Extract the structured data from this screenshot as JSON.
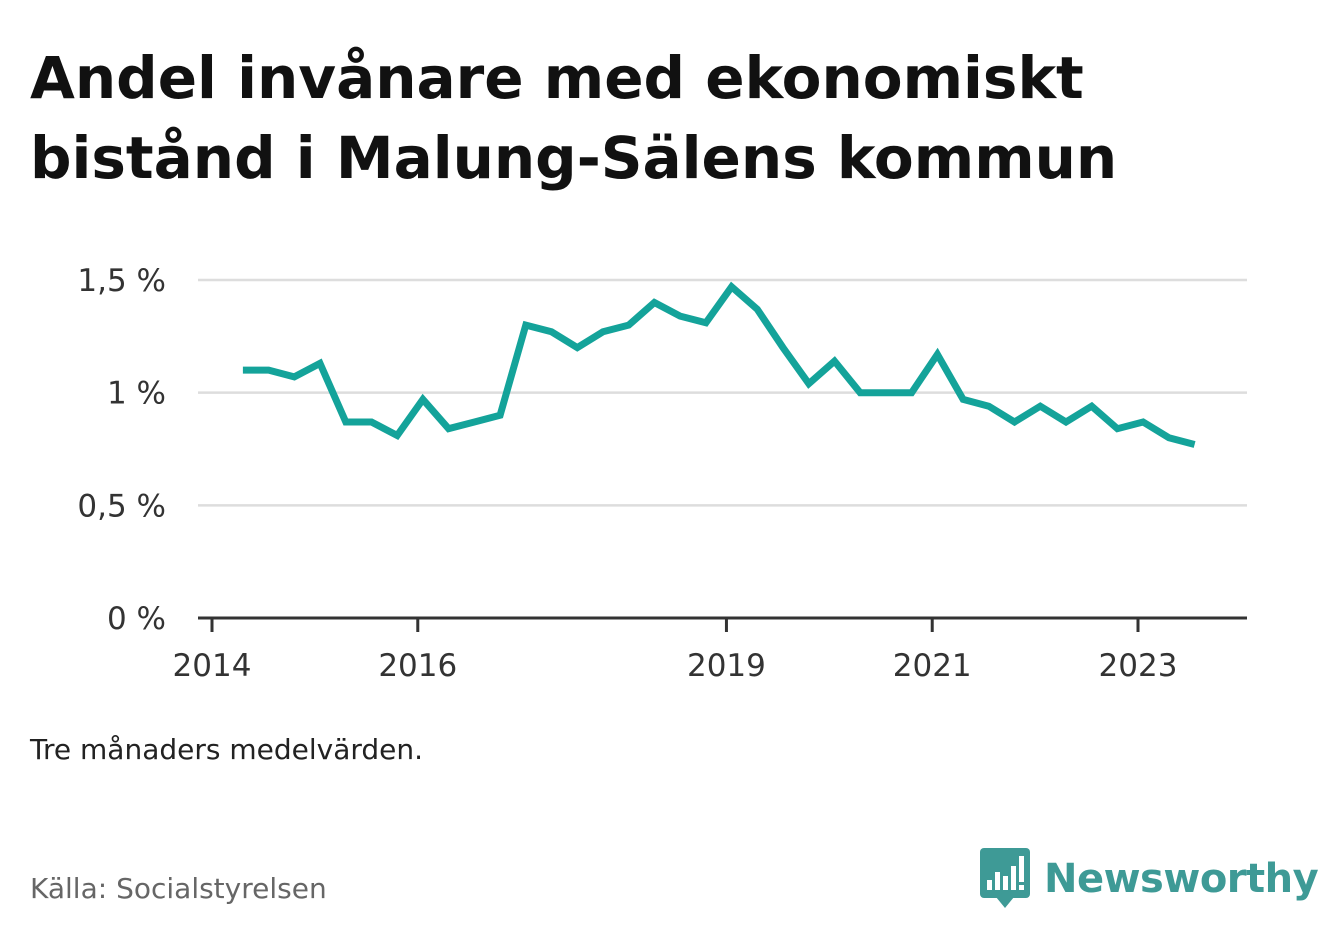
{
  "title": "Andel invånare med ekonomiskt bistånd i Malung-Sälens kommun",
  "note": "Tre månaders medelvärden.",
  "source": "Källa: Socialstyrelsen",
  "brand": {
    "name": "Newsworthy",
    "icon": "bar-chart-speech-bubble-icon",
    "color": "#3e9a96"
  },
  "chart_data": {
    "type": "line",
    "x_ticks": [
      "2014",
      "2016",
      "2019",
      "2021",
      "2023"
    ],
    "x_tick_positions": [
      2014.0,
      2016.0,
      2019.0,
      2021.0,
      2023.0
    ],
    "y_ticks": [
      {
        "value": 0,
        "label": "0 %"
      },
      {
        "value": 0.5,
        "label": "0,5 %"
      },
      {
        "value": 1,
        "label": "1 %"
      },
      {
        "value": 1.5,
        "label": "1,5 %"
      }
    ],
    "ylim": [
      0,
      1.5
    ],
    "grid": true,
    "line_color": "#14a39a",
    "series": [
      {
        "x": [
          2014.3,
          2014.55,
          2014.8,
          2015.05,
          2015.3,
          2015.55,
          2015.8,
          2016.05,
          2016.3,
          2016.55,
          2016.8,
          2017.05,
          2017.3,
          2017.55,
          2017.8,
          2018.05,
          2018.3,
          2018.55,
          2018.8,
          2019.05,
          2019.3,
          2019.55,
          2019.8,
          2020.05,
          2020.3,
          2020.55,
          2020.8,
          2021.05,
          2021.3,
          2021.55,
          2021.8,
          2022.05,
          2022.3,
          2022.55,
          2022.8,
          2023.05,
          2023.3,
          2023.55
        ],
        "values": [
          1.1,
          1.1,
          1.07,
          1.13,
          0.87,
          0.87,
          0.81,
          0.97,
          0.84,
          0.87,
          0.9,
          1.3,
          1.27,
          1.2,
          1.27,
          1.3,
          1.4,
          1.34,
          1.31,
          1.47,
          1.37,
          1.2,
          1.04,
          1.14,
          1.0,
          1.0,
          1.0,
          1.17,
          0.97,
          0.94,
          0.87,
          0.94,
          0.87,
          0.94,
          0.84,
          0.87,
          0.8,
          0.77
        ]
      }
    ]
  }
}
